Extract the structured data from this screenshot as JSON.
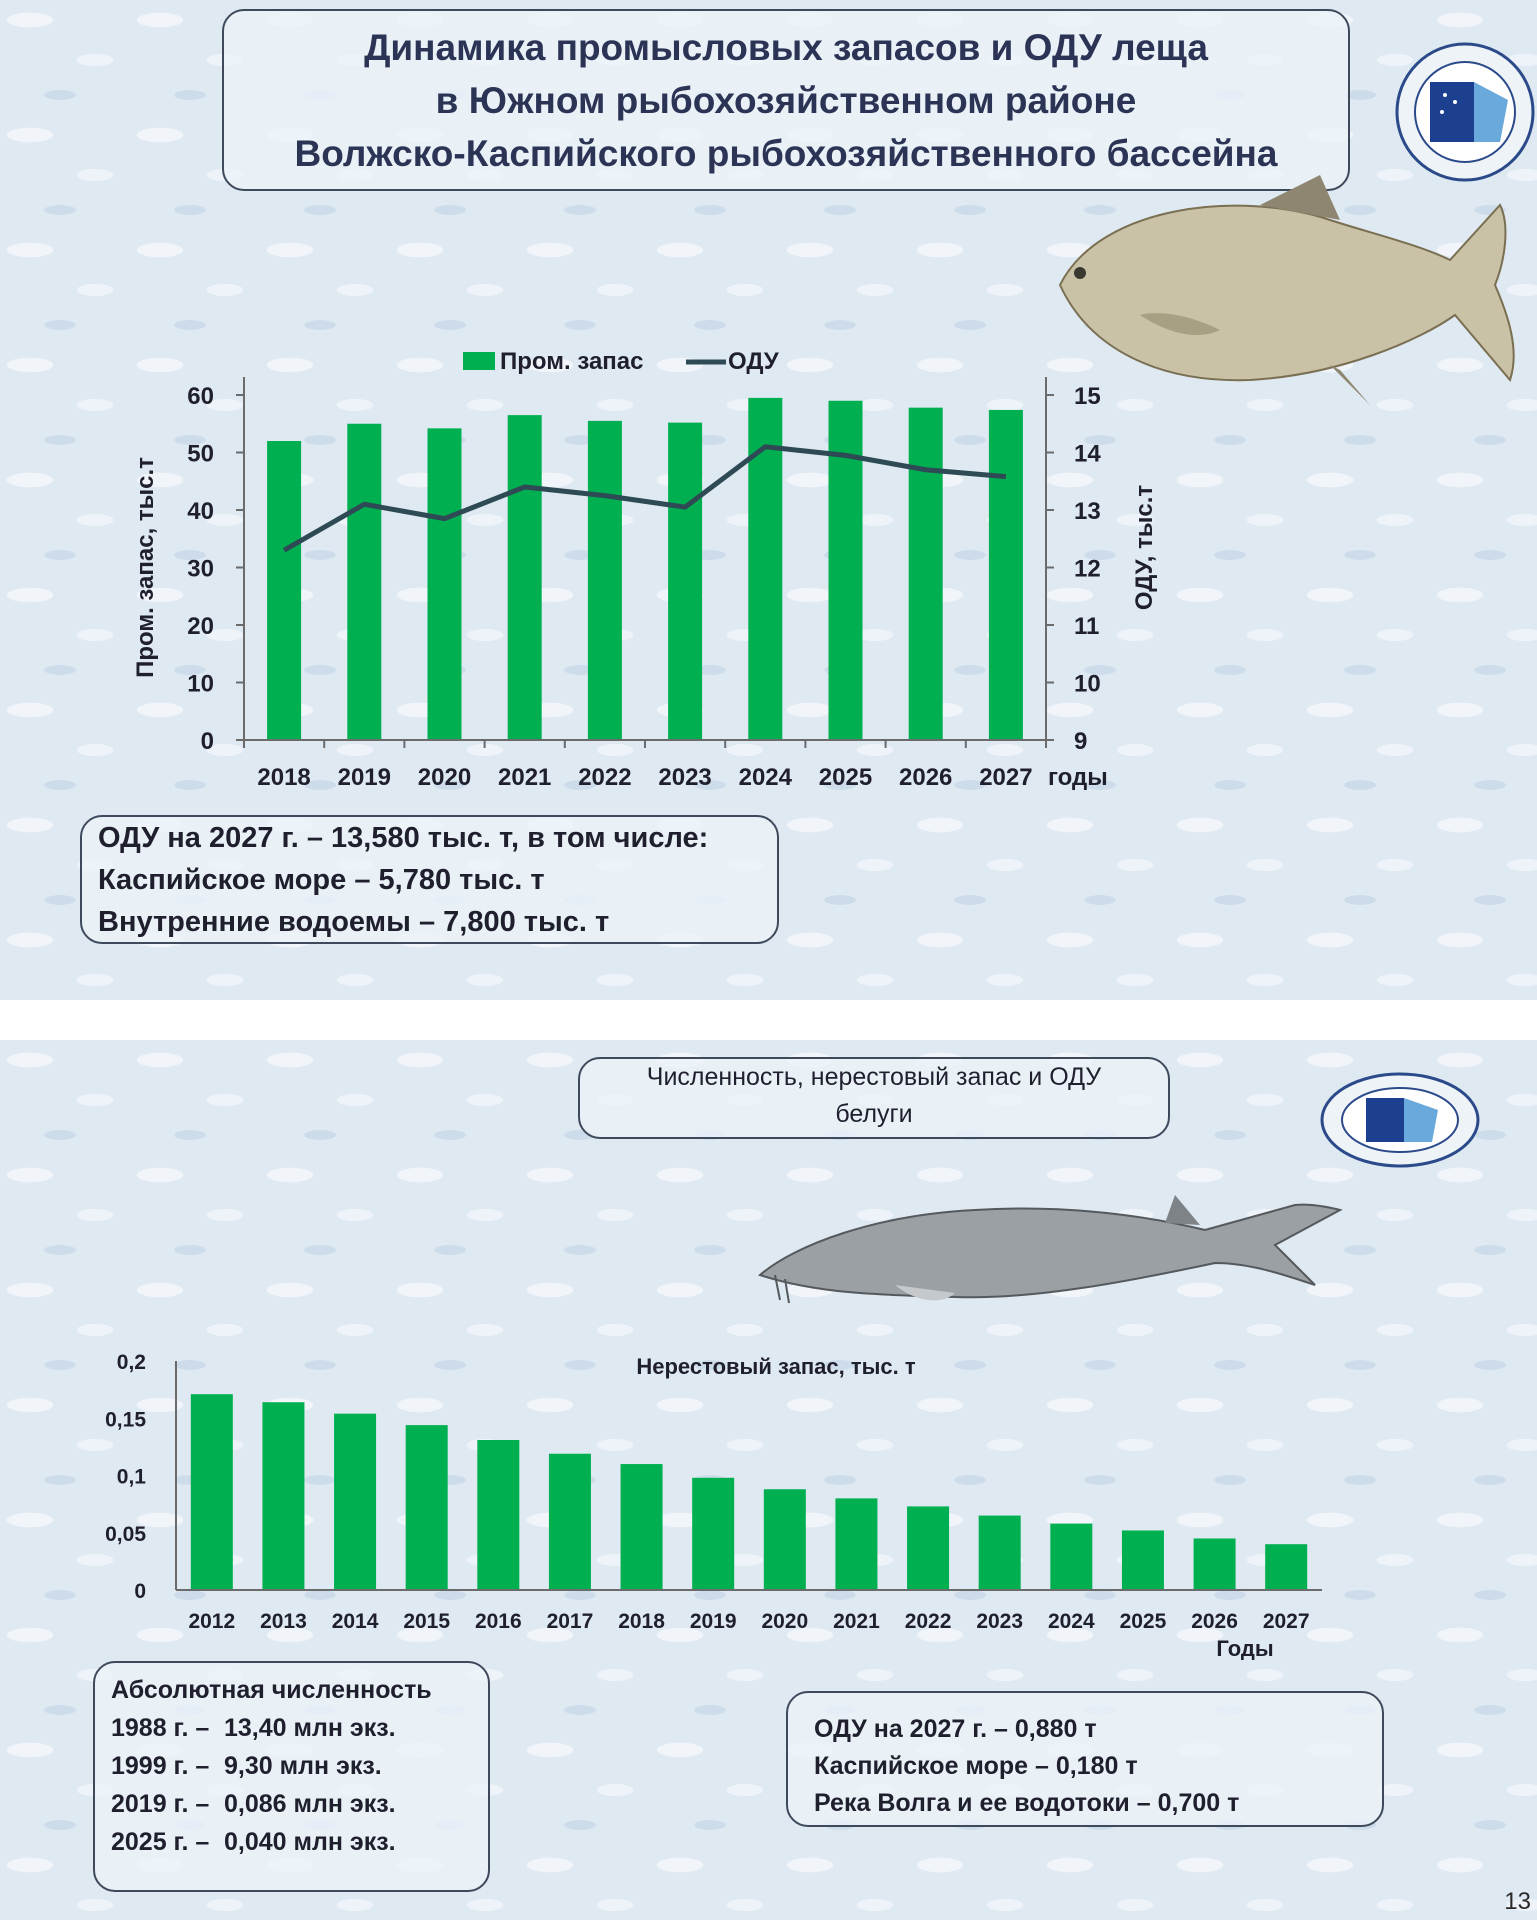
{
  "slide1": {
    "title_lines": [
      "Динамика промысловых запасов  и ОДУ леща",
      "в Южном рыбохозяйственном районе",
      "Волжско-Каспийского рыбохозяйственного бассейна"
    ],
    "info_lines": [
      "ОДУ на 2027 г. – 13,580 тыс. т, в том числе:",
      "Каспийское море – 5,780 тыс. т",
      "Внутренние водоемы – 7,800 тыс. т"
    ]
  },
  "slide2": {
    "title_lines": [
      "Численность, нерестовый запас и ОДУ",
      "белуги"
    ],
    "abs_title": "Абсолютная численность",
    "abs_rows": [
      {
        "year": "1988 г. –",
        "value": "13,40 млн экз."
      },
      {
        "year": "1999 г. –",
        "value": "9,30 млн экз."
      },
      {
        "year": "2019 г. –",
        "value": "0,086 млн экз."
      },
      {
        "year": "2025 г. –",
        "value": "0,040 млн экз."
      }
    ],
    "odu_lines": [
      "ОДУ на 2027 г. – 0,880 т",
      "Каспийское море – 0,180 т",
      "Река Волга и ее водотоки – 0,700 т"
    ]
  },
  "page_number": "13",
  "colors": {
    "bar": "#00b050",
    "line": "#2e4a55",
    "axis": "#6b6b6b"
  },
  "chart_data": [
    {
      "type": "bar",
      "title": "",
      "categories": [
        "2018",
        "2019",
        "2020",
        "2021",
        "2022",
        "2023",
        "2024",
        "2025",
        "2026",
        "2027"
      ],
      "xlabel": "годы",
      "ylabel": "Пром. запас, тыс.т",
      "ylim": [
        0,
        60
      ],
      "yticks": [
        "0",
        "10",
        "20",
        "30",
        "40",
        "50",
        "60"
      ],
      "y2label": "ОДУ, тыс.т",
      "y2lim": [
        9,
        15
      ],
      "y2ticks": [
        "9",
        "10",
        "11",
        "12",
        "13",
        "14",
        "15"
      ],
      "legend_position": "top",
      "series": [
        {
          "name": "Пром. запас",
          "type": "bar",
          "axis": "left",
          "values": [
            52,
            55,
            54.2,
            56.5,
            55.5,
            55.2,
            59.5,
            59,
            57.8,
            57.4
          ]
        },
        {
          "name": "ОДУ",
          "type": "line",
          "axis": "right",
          "values": [
            12.3,
            13.1,
            12.85,
            13.4,
            13.25,
            13.05,
            14.1,
            13.95,
            13.7,
            13.58
          ]
        }
      ]
    },
    {
      "type": "bar",
      "title": "Нерестовый запас, тыс. т",
      "categories": [
        "2012",
        "2013",
        "2014",
        "2015",
        "2016",
        "2017",
        "2018",
        "2019",
        "2020",
        "2021",
        "2022",
        "2023",
        "2024",
        "2025",
        "2026",
        "2027"
      ],
      "xlabel": "Годы",
      "ylabel": "",
      "ylim": [
        0,
        0.2
      ],
      "yticks": [
        "0",
        "0,05",
        "0,1",
        "0,15",
        "0,2"
      ],
      "series": [
        {
          "values": [
            0.171,
            0.164,
            0.154,
            0.144,
            0.131,
            0.119,
            0.11,
            0.098,
            0.088,
            0.08,
            0.073,
            0.065,
            0.058,
            0.052,
            0.045,
            0.04
          ]
        }
      ]
    }
  ]
}
